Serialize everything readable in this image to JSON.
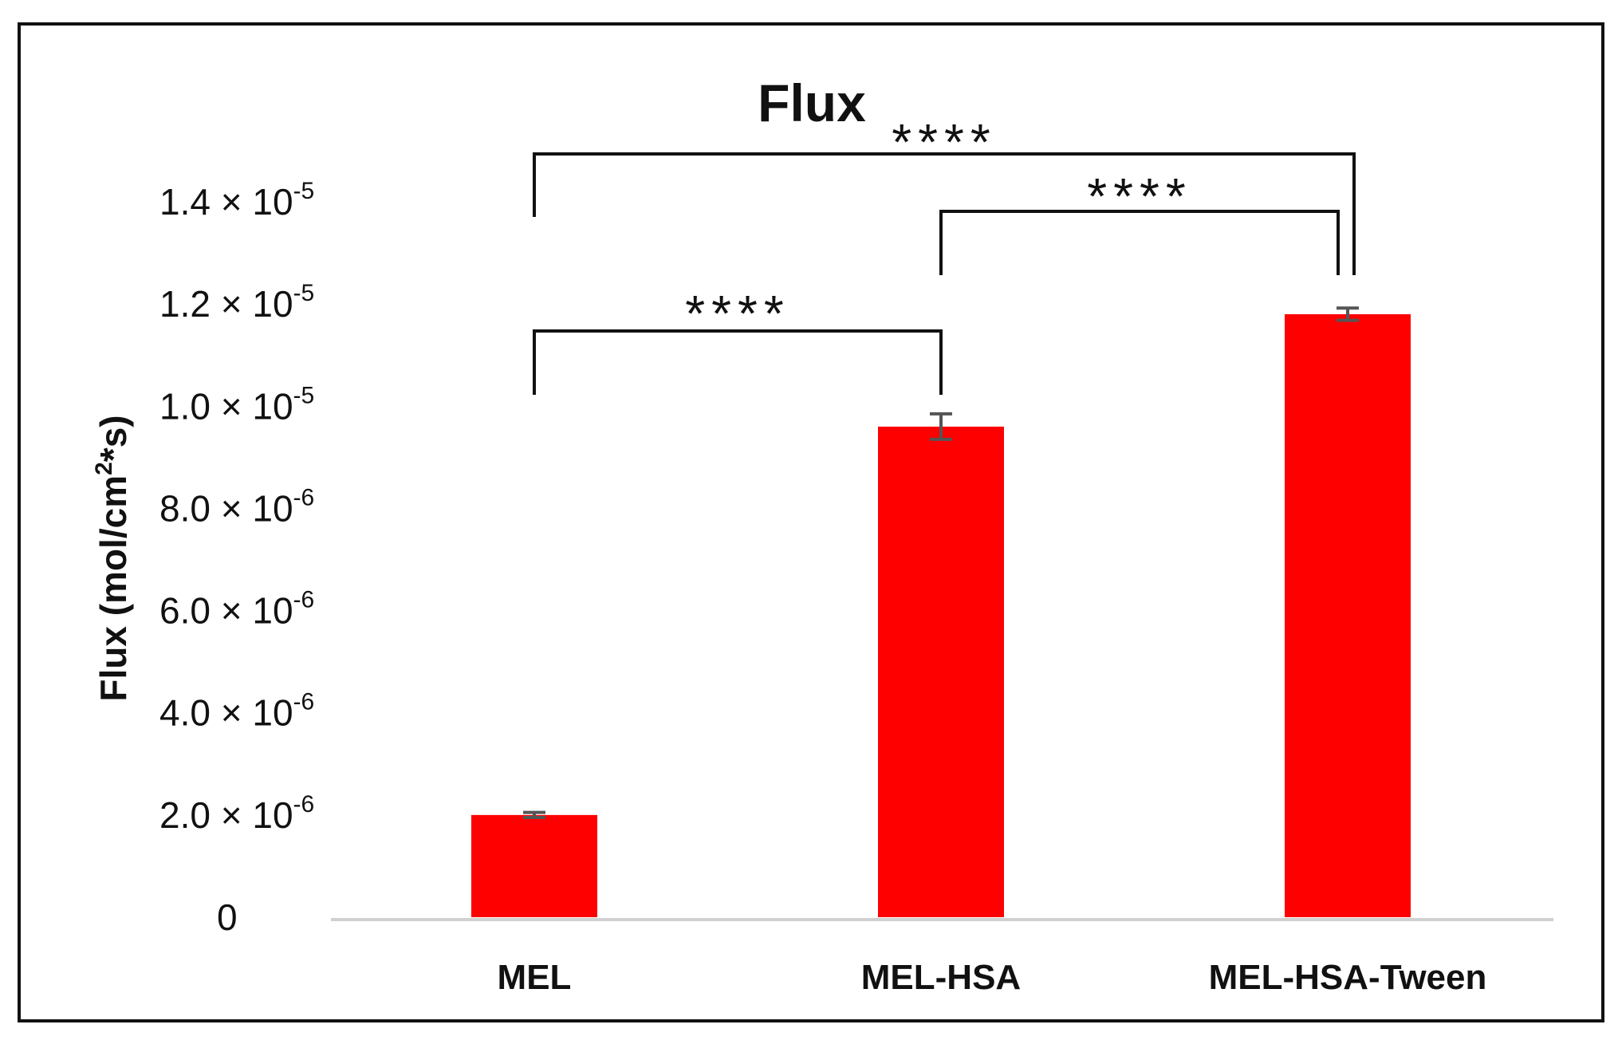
{
  "chart_data": {
    "type": "bar",
    "title": "Flux",
    "ylabel": "Flux (mol/cm",
    "ylabel_sup": "2",
    "ylabel_suffix": "*s)",
    "categories": [
      "MEL",
      "MEL-HSA",
      "MEL-HSA-Tween"
    ],
    "values": [
      2e-06,
      9.6e-06,
      1.18e-05
    ],
    "errors": [
      5e-08,
      2.5e-07,
      1.2e-07
    ],
    "ylim": [
      0,
      1.4e-05
    ],
    "yticks": [
      {
        "value": 0,
        "mantissa": "0",
        "exp": ""
      },
      {
        "value": 2e-06,
        "mantissa": "2.0 × 10",
        "exp": "-6"
      },
      {
        "value": 4e-06,
        "mantissa": "4.0 × 10",
        "exp": "-6"
      },
      {
        "value": 6e-06,
        "mantissa": "6.0 × 10",
        "exp": "-6"
      },
      {
        "value": 8e-06,
        "mantissa": "8.0 × 10",
        "exp": "-6"
      },
      {
        "value": 1e-05,
        "mantissa": "1.0 × 10",
        "exp": "-5"
      },
      {
        "value": 1.2e-05,
        "mantissa": "1.2 × 10",
        "exp": "-5"
      },
      {
        "value": 1.4e-05,
        "mantissa": "1.4 × 10",
        "exp": "-5"
      }
    ],
    "bar_color": "#ff0000",
    "grid": false,
    "significance": [
      {
        "from": 0,
        "to": 1,
        "label": "****"
      },
      {
        "from": 1,
        "to": 2,
        "label": "****"
      },
      {
        "from": 0,
        "to": 2,
        "label": "****"
      }
    ]
  }
}
